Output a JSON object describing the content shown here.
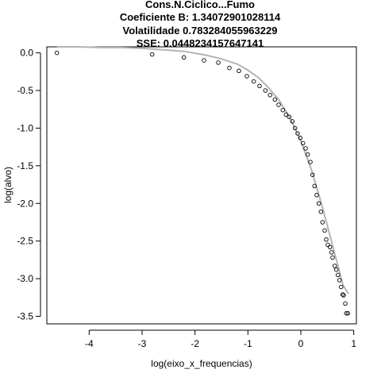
{
  "chart_data": {
    "type": "scatter",
    "title": [
      "Cons.N.Ciclico...Fumo",
      "Coeficiente B:  1.34072901028114",
      "Volatilidade 0.783284055963229",
      "SSE: 0.0448234157647141"
    ],
    "xlabel": "log(eixo_x_frequencias)",
    "ylabel": "log(alvo)",
    "xlim": [
      -4.8,
      1.05
    ],
    "ylim": [
      -3.6,
      0.08
    ],
    "x_ticks": [
      -4,
      -3,
      -2,
      -1,
      0,
      1
    ],
    "y_ticks": [
      0.0,
      -0.5,
      -1.0,
      -1.5,
      -2.0,
      -2.5,
      -3.0,
      -3.5
    ],
    "x_tick_labels": [
      "-4",
      "-3",
      "-2",
      "-1",
      "0",
      "1"
    ],
    "y_tick_labels": [
      "0.0",
      "-0.5",
      "-1.0",
      "-1.5",
      "-2.0",
      "-2.5",
      "-3.0",
      "-3.5"
    ],
    "grid": false,
    "colors": {
      "points": "#000000",
      "fit_line": "#b4b4b4",
      "axes": "#000000"
    },
    "series": [
      {
        "kind": "points",
        "x": [
          -4.61,
          -2.81,
          -2.21,
          -1.83,
          -1.56,
          -1.35,
          -1.17,
          -1.02,
          -0.89,
          -0.78,
          -0.67,
          -0.58,
          -0.49,
          -0.42,
          -0.34,
          -0.28,
          -0.22,
          -0.16,
          -0.11,
          -0.06,
          -0.01,
          0.04,
          0.09,
          0.13,
          0.18,
          0.22,
          0.26,
          0.3,
          0.34,
          0.38,
          0.41,
          0.45,
          0.48,
          0.51,
          0.55,
          0.58,
          0.6,
          0.64,
          0.67,
          0.7,
          0.73,
          0.76,
          0.79,
          0.81,
          0.84,
          0.86,
          0.89
        ],
        "y": [
          0.0,
          -0.02,
          -0.06,
          -0.1,
          -0.13,
          -0.2,
          -0.24,
          -0.31,
          -0.38,
          -0.44,
          -0.5,
          -0.56,
          -0.62,
          -0.69,
          -0.76,
          -0.82,
          -0.85,
          -0.91,
          -1.0,
          -1.07,
          -1.13,
          -1.2,
          -1.27,
          -1.35,
          -1.45,
          -1.62,
          -1.77,
          -1.89,
          -2.0,
          -2.11,
          -2.25,
          -2.36,
          -2.48,
          -2.55,
          -2.58,
          -2.65,
          -2.72,
          -2.83,
          -2.88,
          -2.95,
          -3.02,
          -3.11,
          -3.21,
          -3.22,
          -3.33,
          -3.46,
          -3.46
        ]
      },
      {
        "kind": "fit_line",
        "x": [
          -4.61,
          -4.2,
          -3.8,
          -3.4,
          -3.0,
          -2.6,
          -2.2,
          -1.8,
          -1.5,
          -1.2,
          -1.0,
          -0.8,
          -0.6,
          -0.4,
          -0.2,
          0.0,
          0.2,
          0.4,
          0.6,
          0.8,
          0.9
        ],
        "y": [
          0.08,
          0.08,
          0.07,
          0.07,
          0.06,
          0.04,
          0.02,
          -0.03,
          -0.08,
          -0.15,
          -0.23,
          -0.33,
          -0.47,
          -0.64,
          -0.87,
          -1.17,
          -1.55,
          -2.03,
          -2.56,
          -3.09,
          -3.2
        ]
      }
    ]
  }
}
